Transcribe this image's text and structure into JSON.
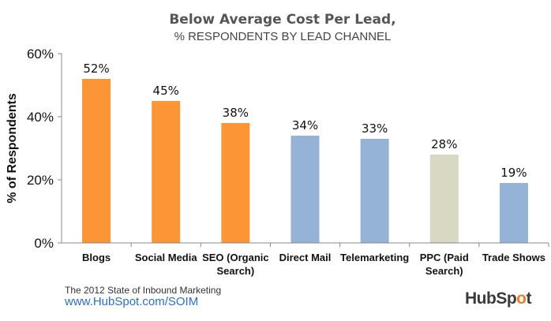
{
  "chart_data": {
    "type": "bar",
    "title": "Below Average Cost Per Lead,",
    "subtitle": "% RESPONDENTS BY LEAD CHANNEL",
    "ylabel": "% of Respondents",
    "xlabel": "",
    "ylim": [
      0,
      60
    ],
    "yticks": [
      0,
      20,
      40,
      60
    ],
    "ytick_labels": [
      "0%",
      "20%",
      "40%",
      "60%"
    ],
    "categories": [
      [
        "Blogs"
      ],
      [
        "Social Media"
      ],
      [
        "SEO (Organic",
        "Search)"
      ],
      [
        "Direct Mail"
      ],
      [
        "Telemarketing"
      ],
      [
        "PPC (Paid",
        "Search)"
      ],
      [
        "Trade Shows"
      ]
    ],
    "values": [
      52,
      45,
      38,
      34,
      33,
      28,
      19
    ],
    "value_labels": [
      "52%",
      "45%",
      "38%",
      "34%",
      "33%",
      "28%",
      "19%"
    ],
    "bar_colors": [
      "#fb9535",
      "#fb9535",
      "#fb9535",
      "#95b3d7",
      "#95b3d7",
      "#d9d9c3",
      "#95b3d7"
    ],
    "grid": false,
    "legend": "none"
  },
  "footer": {
    "source": "The 2012 State of Inbound Marketing",
    "url": "www.HubSpot.com/SOIM"
  },
  "logo": {
    "text_before": "HubSp",
    "sprocket": "o",
    "text_after": "t"
  }
}
